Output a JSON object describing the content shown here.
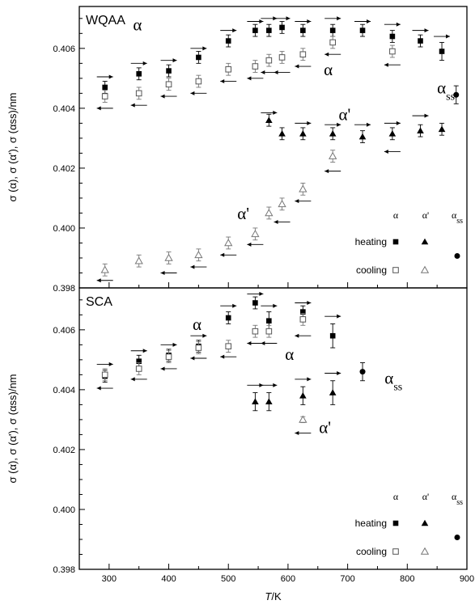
{
  "chart_data": {
    "type": "scatter",
    "xlabel": "T/K",
    "x_ticks": [
      300,
      400,
      500,
      600,
      700,
      800,
      900
    ],
    "xlim": [
      250,
      900
    ],
    "panels": [
      {
        "title": "WQAA",
        "ylabel": "σ (α), σ (α'), σ (αss)/nm",
        "ylim": [
          0.398,
          0.4074
        ],
        "y_ticks": [
          0.398,
          0.4,
          0.402,
          0.404,
          0.406
        ],
        "y_tick_labels": [
          "0.398",
          "0.400",
          "0.402",
          "0.404",
          "0.406"
        ],
        "annotations": [
          {
            "text": "α",
            "x": 340,
            "y": 0.4066
          },
          {
            "text": "α",
            "x": 660,
            "y": 0.4051
          },
          {
            "text": "α'",
            "x": 685,
            "y": 0.4036
          },
          {
            "text": "α'",
            "x": 515,
            "y": 0.4003
          },
          {
            "text": "α",
            "sub": "ss",
            "x": 850,
            "y": 0.4045
          }
        ],
        "series": [
          {
            "name": "α heating",
            "marker": "square-filled",
            "x": [
              293,
              350,
              400,
              450,
              500,
              545,
              568,
              590,
              625,
              675,
              725,
              775,
              822,
              858
            ],
            "y": [
              0.4047,
              0.40515,
              0.40525,
              0.4057,
              0.40625,
              0.4066,
              0.4066,
              0.4067,
              0.4066,
              0.4066,
              0.4066,
              0.4064,
              0.40625,
              0.4059
            ],
            "err": [
              0.0002,
              0.0002,
              0.0002,
              0.0002,
              0.0002,
              0.0002,
              0.0002,
              0.0002,
              0.0002,
              0.0002,
              0.0002,
              0.0002,
              0.0002,
              0.0003
            ]
          },
          {
            "name": "α cooling",
            "marker": "square-open",
            "x": [
              293,
              350,
              400,
              450,
              500,
              545,
              568,
              590,
              625,
              675,
              775
            ],
            "y": [
              0.4044,
              0.4045,
              0.4048,
              0.4049,
              0.4053,
              0.4054,
              0.4056,
              0.4057,
              0.4058,
              0.4062,
              0.4059
            ],
            "err": [
              0.0002,
              0.0002,
              0.0002,
              0.0002,
              0.0002,
              0.0002,
              0.0002,
              0.0002,
              0.0002,
              0.0002,
              0.0002
            ]
          },
          {
            "name": "α' heating",
            "marker": "triangle-filled",
            "x": [
              568,
              590,
              625,
              675,
              725,
              775,
              822,
              858
            ],
            "y": [
              0.4036,
              0.40315,
              0.40315,
              0.40315,
              0.40305,
              0.40315,
              0.40325,
              0.4033
            ],
            "err": [
              0.0002,
              0.0002,
              0.0002,
              0.0002,
              0.0002,
              0.0002,
              0.0002,
              0.0002
            ]
          },
          {
            "name": "α' cooling",
            "marker": "triangle-open",
            "x": [
              293,
              350,
              400,
              450,
              500,
              545,
              568,
              590,
              625,
              675
            ],
            "y": [
              0.3986,
              0.3989,
              0.399,
              0.3991,
              0.3995,
              0.3998,
              0.4005,
              0.4008,
              0.4013,
              0.4024
            ],
            "err": [
              0.0002,
              0.0002,
              0.0002,
              0.0002,
              0.0002,
              0.0002,
              0.0002,
              0.0002,
              0.0002,
              0.0002
            ]
          },
          {
            "name": "αss",
            "marker": "circle-filled",
            "x": [
              882
            ],
            "y": [
              0.40445
            ],
            "err": [
              0.0003
            ]
          }
        ],
        "arrows_right": [
          {
            "x": 293,
            "y": 0.40505
          },
          {
            "x": 350,
            "y": 0.4055
          },
          {
            "x": 400,
            "y": 0.4056
          },
          {
            "x": 450,
            "y": 0.406
          },
          {
            "x": 500,
            "y": 0.4066
          },
          {
            "x": 545,
            "y": 0.4069
          },
          {
            "x": 568,
            "y": 0.407
          },
          {
            "x": 590,
            "y": 0.407
          },
          {
            "x": 625,
            "y": 0.4069
          },
          {
            "x": 675,
            "y": 0.407
          },
          {
            "x": 725,
            "y": 0.4069
          },
          {
            "x": 775,
            "y": 0.4068
          },
          {
            "x": 822,
            "y": 0.4066
          },
          {
            "x": 858,
            "y": 0.4064
          },
          {
            "x": 568,
            "y": 0.40385
          },
          {
            "x": 625,
            "y": 0.4035
          },
          {
            "x": 675,
            "y": 0.40345
          },
          {
            "x": 725,
            "y": 0.40345
          },
          {
            "x": 775,
            "y": 0.4035
          },
          {
            "x": 822,
            "y": 0.40375
          }
        ],
        "arrows_left": [
          {
            "x": 293,
            "y": 0.404
          },
          {
            "x": 350,
            "y": 0.4041
          },
          {
            "x": 400,
            "y": 0.4044
          },
          {
            "x": 450,
            "y": 0.4045
          },
          {
            "x": 500,
            "y": 0.4049
          },
          {
            "x": 545,
            "y": 0.405
          },
          {
            "x": 568,
            "y": 0.4052
          },
          {
            "x": 590,
            "y": 0.4052
          },
          {
            "x": 625,
            "y": 0.4054
          },
          {
            "x": 675,
            "y": 0.4058
          },
          {
            "x": 775,
            "y": 0.40545
          },
          {
            "x": 293,
            "y": 0.39825
          },
          {
            "x": 400,
            "y": 0.3985
          },
          {
            "x": 450,
            "y": 0.3987
          },
          {
            "x": 500,
            "y": 0.3991
          },
          {
            "x": 545,
            "y": 0.39945
          },
          {
            "x": 590,
            "y": 0.4002
          },
          {
            "x": 625,
            "y": 0.4009
          },
          {
            "x": 675,
            "y": 0.4019
          },
          {
            "x": 775,
            "y": 0.40255
          }
        ],
        "legend": {
          "col_heads": [
            "α",
            "α'",
            "αss"
          ],
          "rows": [
            "heating",
            "cooling"
          ]
        }
      },
      {
        "title": "SCA",
        "ylabel": "σ (α), σ (α'), σ (αss)/nm",
        "ylim": [
          0.398,
          0.4074
        ],
        "y_ticks": [
          0.398,
          0.4,
          0.402,
          0.404,
          0.406
        ],
        "y_tick_labels": [
          "0.398",
          "0.400",
          "0.402",
          "0.404",
          "0.406"
        ],
        "annotations": [
          {
            "text": "α",
            "x": 440,
            "y": 0.406
          },
          {
            "text": "α",
            "x": 595,
            "y": 0.405
          },
          {
            "text": "α'",
            "x": 652,
            "y": 0.40255
          },
          {
            "text": "α",
            "sub": "ss",
            "x": 762,
            "y": 0.4042
          }
        ],
        "series": [
          {
            "name": "α heating",
            "marker": "square-filled",
            "x": [
              293,
              350,
              400,
              450,
              500,
              545,
              568,
              625,
              675
            ],
            "y": [
              0.40445,
              0.40495,
              0.40515,
              0.40545,
              0.4064,
              0.4069,
              0.4063,
              0.4066,
              0.4058
            ],
            "err": [
              0.0002,
              0.0002,
              0.0002,
              0.0002,
              0.0002,
              0.0002,
              0.0003,
              0.0002,
              0.0004
            ]
          },
          {
            "name": "α cooling",
            "marker": "square-open",
            "x": [
              293,
              350,
              400,
              450,
              500,
              545,
              568,
              625
            ],
            "y": [
              0.4045,
              0.4047,
              0.4051,
              0.4054,
              0.40545,
              0.40595,
              0.40595,
              0.40635
            ],
            "err": [
              0.0002,
              0.0002,
              0.0002,
              0.0002,
              0.0002,
              0.0002,
              0.0002,
              0.0002
            ]
          },
          {
            "name": "α' heating",
            "marker": "triangle-filled",
            "x": [
              545,
              568,
              625,
              675
            ],
            "y": [
              0.4036,
              0.4036,
              0.4038,
              0.4039
            ],
            "err": [
              0.0003,
              0.0003,
              0.0003,
              0.0004
            ]
          },
          {
            "name": "α' cooling",
            "marker": "triangle-open",
            "x": [
              625
            ],
            "y": [
              0.403
            ],
            "err": [
              0.0001
            ]
          },
          {
            "name": "αss",
            "marker": "circle-filled",
            "x": [
              725
            ],
            "y": [
              0.4046
            ],
            "err": [
              0.0003
            ]
          }
        ],
        "arrows_right": [
          {
            "x": 293,
            "y": 0.40485
          },
          {
            "x": 350,
            "y": 0.4053
          },
          {
            "x": 400,
            "y": 0.4055
          },
          {
            "x": 450,
            "y": 0.4058
          },
          {
            "x": 500,
            "y": 0.4068
          },
          {
            "x": 545,
            "y": 0.4072
          },
          {
            "x": 568,
            "y": 0.4068
          },
          {
            "x": 625,
            "y": 0.4069
          },
          {
            "x": 675,
            "y": 0.40645
          },
          {
            "x": 545,
            "y": 0.40415
          },
          {
            "x": 568,
            "y": 0.40415
          },
          {
            "x": 625,
            "y": 0.40435
          },
          {
            "x": 675,
            "y": 0.40455
          }
        ],
        "arrows_left": [
          {
            "x": 293,
            "y": 0.40405
          },
          {
            "x": 350,
            "y": 0.40435
          },
          {
            "x": 400,
            "y": 0.4047
          },
          {
            "x": 450,
            "y": 0.40505
          },
          {
            "x": 500,
            "y": 0.4051
          },
          {
            "x": 545,
            "y": 0.40555
          },
          {
            "x": 568,
            "y": 0.40555
          },
          {
            "x": 625,
            "y": 0.4058
          },
          {
            "x": 625,
            "y": 0.40255
          }
        ],
        "legend": {
          "col_heads": [
            "α",
            "α'",
            "αss"
          ],
          "rows": [
            "heating",
            "cooling"
          ]
        }
      }
    ]
  }
}
